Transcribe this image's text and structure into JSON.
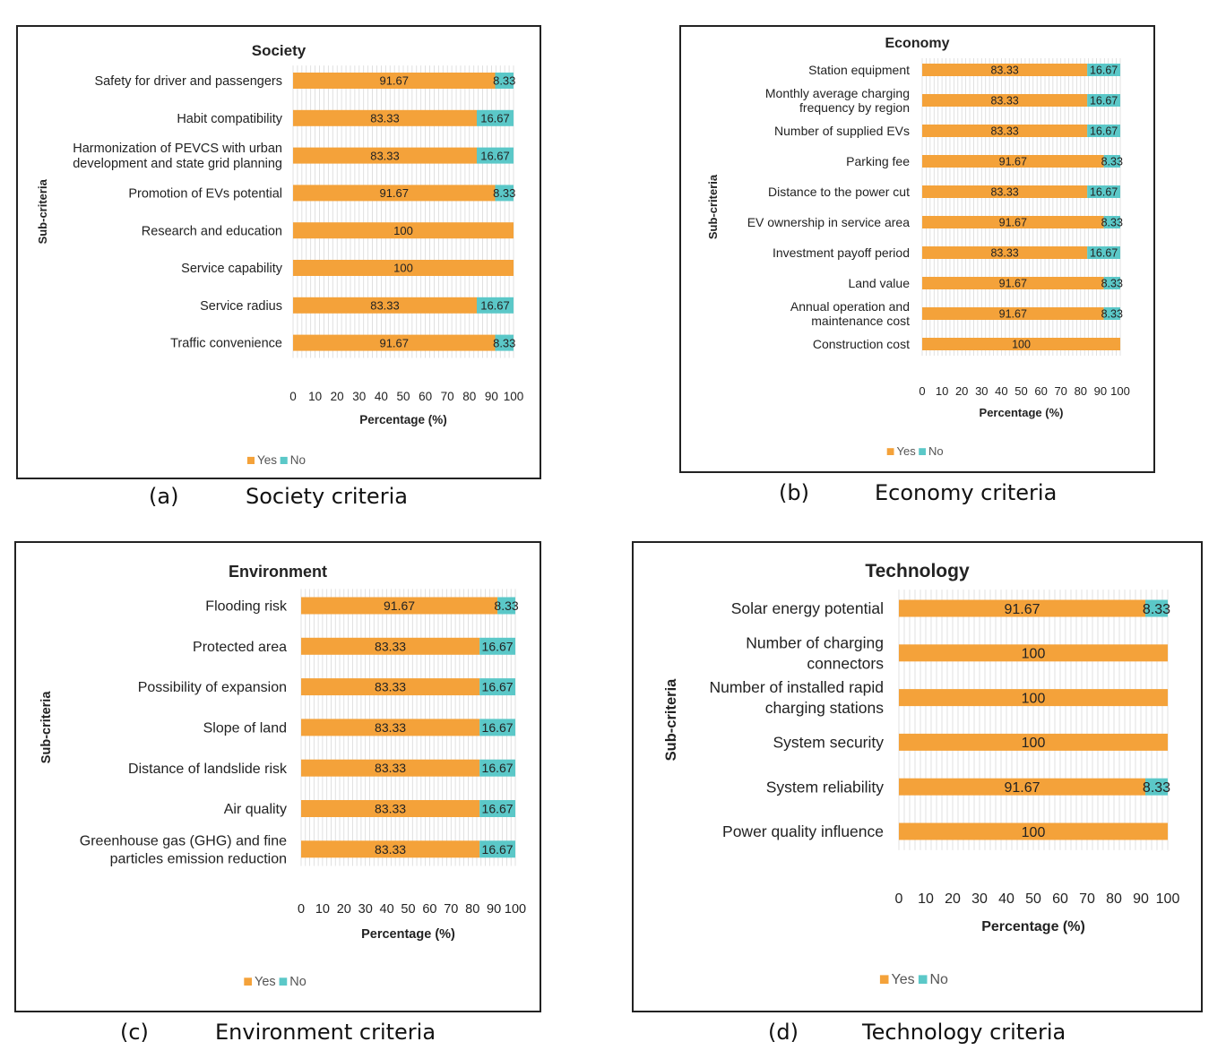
{
  "colors": {
    "yes": "#F4A23A",
    "no": "#5BC8C8",
    "grid": "#d9d9d9",
    "text": "#222222"
  },
  "charts": [
    {
      "caption_letter": "(a)",
      "caption_text": "Society criteria",
      "chart_data": {
        "type": "bar",
        "orientation": "horizontal",
        "stacked": true,
        "title": "Society",
        "xlabel": "Percentage (%)",
        "ylabel": "Sub-criteria",
        "xlim": [
          0,
          100
        ],
        "xticks": [
          "0",
          "10",
          "20",
          "30",
          "40",
          "50",
          "60",
          "70",
          "80",
          "90",
          "100"
        ],
        "legend": "bottom",
        "categories": [
          [
            "Safety for driver and passengers"
          ],
          [
            "Habit compatibility"
          ],
          [
            "Harmonization of PEVCS with urban",
            "development and state grid planning"
          ],
          [
            "Promotion of EVs potential"
          ],
          [
            "Research and education"
          ],
          [
            "Service capability"
          ],
          [
            "Service radius"
          ],
          [
            "Traffic convenience"
          ]
        ],
        "series": [
          {
            "name": "Yes",
            "values": [
              91.67,
              83.33,
              83.33,
              91.67,
              100,
              100,
              83.33,
              91.67
            ],
            "labels": [
              "91.67",
              "83.33",
              "83.33",
              "91.67",
              "100",
              "100",
              "83.33",
              "91.67"
            ]
          },
          {
            "name": "No",
            "values": [
              8.33,
              16.67,
              16.67,
              8.33,
              0,
              0,
              16.67,
              8.33
            ],
            "labels": [
              "8.33",
              "16.67",
              "16.67",
              "8.33",
              "",
              "",
              "16.67",
              "8.33"
            ]
          }
        ]
      }
    },
    {
      "caption_letter": "(b)",
      "caption_text": "Economy criteria",
      "chart_data": {
        "type": "bar",
        "orientation": "horizontal",
        "stacked": true,
        "title": "Economy",
        "xlabel": "Percentage (%)",
        "ylabel": "Sub-criteria",
        "xlim": [
          0,
          100
        ],
        "xticks": [
          "0",
          "10",
          "20",
          "30",
          "40",
          "50",
          "60",
          "70",
          "80",
          "90",
          "100"
        ],
        "legend": "bottom",
        "categories": [
          [
            "Station equipment"
          ],
          [
            "Monthly average charging",
            "frequency by region"
          ],
          [
            "Number of supplied EVs"
          ],
          [
            "Parking fee"
          ],
          [
            "Distance to the power cut"
          ],
          [
            "EV ownership in service area"
          ],
          [
            "Investment payoff period"
          ],
          [
            "Land value"
          ],
          [
            "Annual operation and",
            "maintenance cost"
          ],
          [
            "Construction cost"
          ]
        ],
        "series": [
          {
            "name": "Yes",
            "values": [
              83.33,
              83.33,
              83.33,
              91.67,
              83.33,
              91.67,
              83.33,
              91.67,
              91.67,
              100
            ],
            "labels": [
              "83.33",
              "83.33",
              "83.33",
              "91.67",
              "83.33",
              "91.67",
              "83.33",
              "91.67",
              "91.67",
              "100"
            ]
          },
          {
            "name": "No",
            "values": [
              16.67,
              16.67,
              16.67,
              8.33,
              16.67,
              8.33,
              16.67,
              8.33,
              8.33,
              0
            ],
            "labels": [
              "16.67",
              "16.67",
              "16.67",
              "8.33",
              "16.67",
              "8.33",
              "16.67",
              "8.33",
              "8.33",
              ""
            ]
          }
        ]
      }
    },
    {
      "caption_letter": "(c)",
      "caption_text": "Environment criteria",
      "chart_data": {
        "type": "bar",
        "orientation": "horizontal",
        "stacked": true,
        "title": "Environment",
        "xlabel": "Percentage (%)",
        "ylabel": "Sub-criteria",
        "xlim": [
          0,
          100
        ],
        "xticks": [
          "0",
          "10",
          "20",
          "30",
          "40",
          "50",
          "60",
          "70",
          "80",
          "90",
          "100"
        ],
        "legend": "bottom",
        "categories": [
          [
            "Flooding risk"
          ],
          [
            "Protected area"
          ],
          [
            "Possibility of expansion"
          ],
          [
            "Slope of land"
          ],
          [
            "Distance of landslide risk"
          ],
          [
            "Air quality"
          ],
          [
            "Greenhouse gas (GHG) and fine",
            "particles emission reduction"
          ]
        ],
        "series": [
          {
            "name": "Yes",
            "values": [
              91.67,
              83.33,
              83.33,
              83.33,
              83.33,
              83.33,
              83.33
            ],
            "labels": [
              "91.67",
              "83.33",
              "83.33",
              "83.33",
              "83.33",
              "83.33",
              "83.33"
            ]
          },
          {
            "name": "No",
            "values": [
              8.33,
              16.67,
              16.67,
              16.67,
              16.67,
              16.67,
              16.67
            ],
            "labels": [
              "8.33",
              "16.67",
              "16.67",
              "16.67",
              "16.67",
              "16.67",
              "16.67"
            ]
          }
        ]
      }
    },
    {
      "caption_letter": "(d)",
      "caption_text": "Technology criteria",
      "chart_data": {
        "type": "bar",
        "orientation": "horizontal",
        "stacked": true,
        "title": "Technology",
        "xlabel": "Percentage (%)",
        "ylabel": "Sub-criteria",
        "xlim": [
          0,
          100
        ],
        "xticks": [
          "0",
          "10",
          "20",
          "30",
          "40",
          "50",
          "60",
          "70",
          "80",
          "90",
          "100"
        ],
        "legend": "bottom",
        "categories": [
          [
            "Solar energy potential"
          ],
          [
            "Number of charging",
            "connectors"
          ],
          [
            "Number of installed rapid",
            "charging stations"
          ],
          [
            "System security"
          ],
          [
            "System reliability"
          ],
          [
            "Power quality influence"
          ]
        ],
        "series": [
          {
            "name": "Yes",
            "values": [
              91.67,
              100,
              100,
              100,
              91.67,
              100
            ],
            "labels": [
              "91.67",
              "100",
              "100",
              "100",
              "91.67",
              "100"
            ]
          },
          {
            "name": "No",
            "values": [
              8.33,
              0,
              0,
              0,
              8.33,
              0
            ],
            "labels": [
              "8.33",
              "",
              "",
              "",
              "8.33",
              ""
            ]
          }
        ]
      }
    }
  ]
}
